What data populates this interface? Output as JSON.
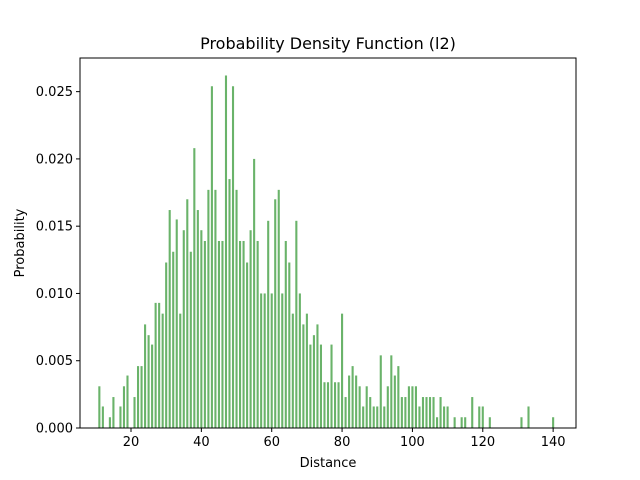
{
  "chart_data": {
    "type": "bar",
    "title": "Probability Density Function (l2)",
    "xlabel": "Distance",
    "ylabel": "Probability",
    "xlim": [
      5.5,
      146.5
    ],
    "ylim": [
      0,
      0.0275
    ],
    "xticks": [
      "20",
      "40",
      "60",
      "80",
      "100",
      "120",
      "140"
    ],
    "yticks": [
      "0.000",
      "0.005",
      "0.010",
      "0.015",
      "0.020",
      "0.025"
    ],
    "bar_color": "#6ab36a",
    "grid": false,
    "x": [
      11,
      12,
      14,
      15,
      17,
      18,
      19,
      21,
      22,
      23,
      24,
      25,
      26,
      27,
      28,
      29,
      30,
      31,
      32,
      33,
      34,
      35,
      36,
      37,
      38,
      39,
      40,
      41,
      42,
      43,
      44,
      45,
      46,
      47,
      48,
      49,
      50,
      51,
      52,
      53,
      54,
      55,
      56,
      57,
      58,
      59,
      60,
      61,
      62,
      63,
      64,
      65,
      66,
      67,
      68,
      69,
      70,
      71,
      72,
      73,
      74,
      75,
      76,
      77,
      78,
      79,
      80,
      81,
      82,
      83,
      84,
      85,
      86,
      87,
      88,
      89,
      90,
      91,
      92,
      93,
      94,
      95,
      96,
      97,
      98,
      99,
      100,
      101,
      102,
      103,
      104,
      105,
      106,
      107,
      108,
      109,
      110,
      112,
      114,
      115,
      117,
      119,
      120,
      122,
      131,
      133,
      140
    ],
    "values": [
      0.0031,
      0.0016,
      0.0008,
      0.0023,
      0.0016,
      0.0031,
      0.0039,
      0.0023,
      0.0046,
      0.0046,
      0.0077,
      0.0069,
      0.0062,
      0.0093,
      0.0093,
      0.0085,
      0.0123,
      0.0162,
      0.0131,
      0.0155,
      0.0085,
      0.0147,
      0.017,
      0.0131,
      0.0208,
      0.0162,
      0.0147,
      0.0139,
      0.0177,
      0.0254,
      0.0177,
      0.0139,
      0.0139,
      0.0262,
      0.0185,
      0.0254,
      0.0177,
      0.0139,
      0.0139,
      0.0123,
      0.0147,
      0.02,
      0.0139,
      0.01,
      0.01,
      0.0154,
      0.01,
      0.017,
      0.0177,
      0.01,
      0.0139,
      0.0123,
      0.0085,
      0.0154,
      0.01,
      0.0077,
      0.0085,
      0.0062,
      0.0069,
      0.0077,
      0.0062,
      0.0034,
      0.0034,
      0.0062,
      0.0034,
      0.0034,
      0.0085,
      0.0023,
      0.0039,
      0.0046,
      0.0039,
      0.0031,
      0.0016,
      0.0031,
      0.0023,
      0.0016,
      0.0016,
      0.0054,
      0.0016,
      0.0031,
      0.0054,
      0.0039,
      0.0046,
      0.0023,
      0.0023,
      0.0031,
      0.0031,
      0.0031,
      0.0016,
      0.0023,
      0.0023,
      0.0023,
      0.0023,
      0.0008,
      0.0023,
      0.0016,
      0.0016,
      0.0008,
      0.0008,
      0.0008,
      0.0023,
      0.0016,
      0.0016,
      0.0008,
      0.0008,
      0.0016,
      0.0008
    ]
  }
}
